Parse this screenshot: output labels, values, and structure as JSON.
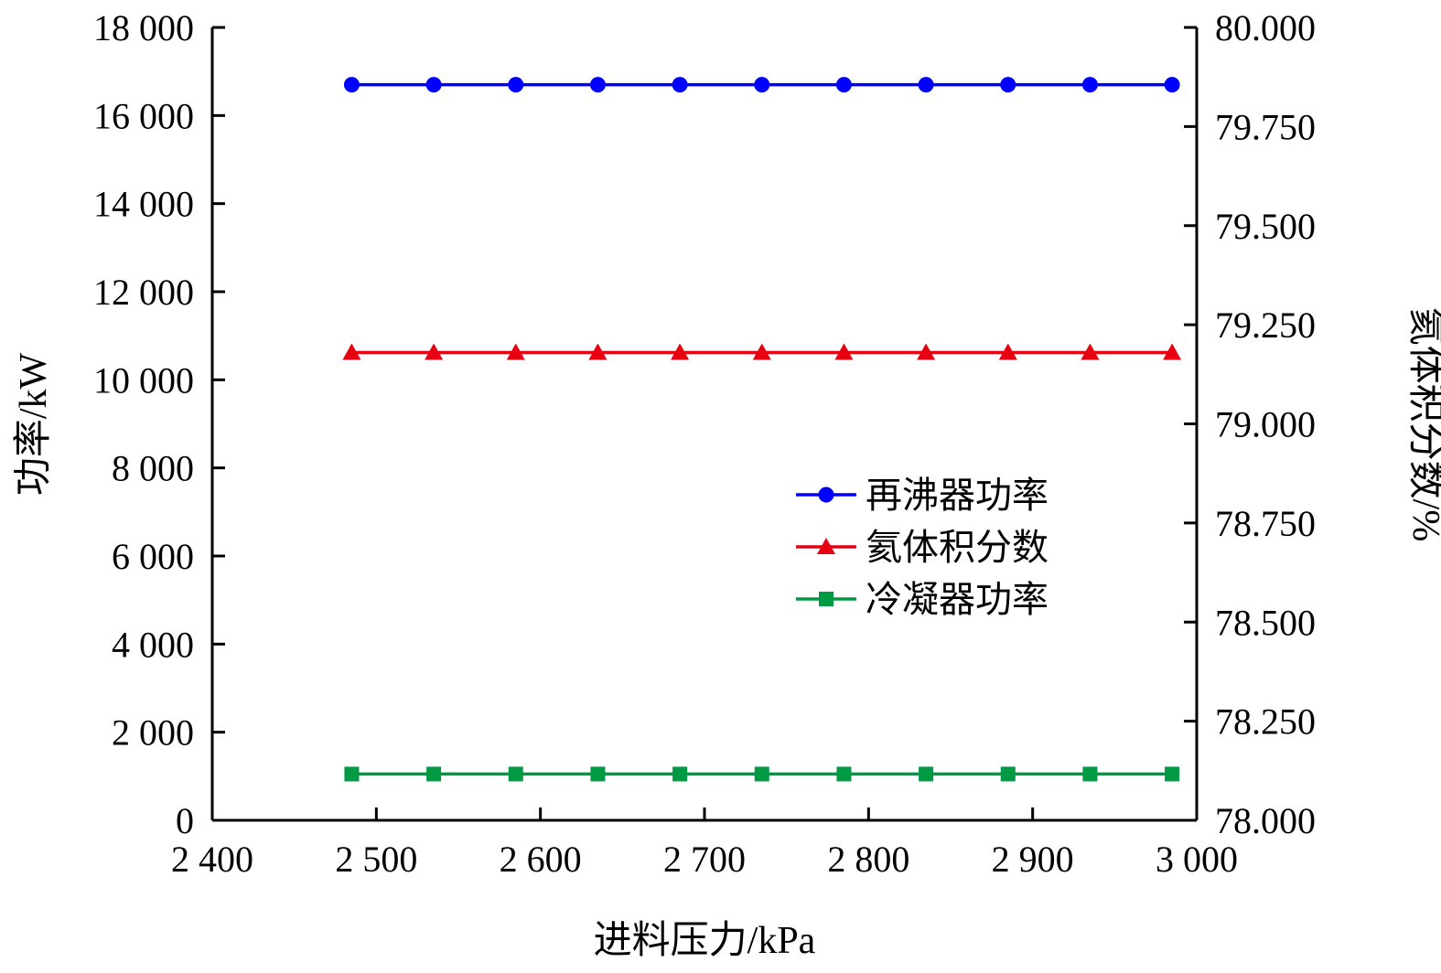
{
  "chart_data": {
    "type": "line",
    "xlabel": "进料压力/kPa",
    "ylabel_left": "功率/kW",
    "ylabel_right": "氦体积分数/%",
    "xlim": [
      2400,
      3000
    ],
    "ylim_left": [
      0,
      18000
    ],
    "ylim_right": [
      78.0,
      80.0
    ],
    "x_ticks": [
      2400,
      2500,
      2600,
      2700,
      2800,
      2900,
      3000
    ],
    "x_tick_labels": [
      "2 400",
      "2 500",
      "2 600",
      "2 700",
      "2 800",
      "2 900",
      "3 000"
    ],
    "y_left_ticks": [
      0,
      2000,
      4000,
      6000,
      8000,
      10000,
      12000,
      14000,
      16000,
      18000
    ],
    "y_left_tick_labels": [
      "0",
      "2 000",
      "4 000",
      "6 000",
      "8 000",
      "10 000",
      "12 000",
      "14 000",
      "16 000",
      "18 000"
    ],
    "y_right_ticks": [
      78.0,
      78.25,
      78.5,
      78.75,
      79.0,
      79.25,
      79.5,
      79.75,
      80.0
    ],
    "y_right_tick_labels": [
      "78.000",
      "78.250",
      "78.500",
      "78.750",
      "79.000",
      "79.250",
      "79.500",
      "79.750",
      "80.000"
    ],
    "x": [
      2485,
      2535,
      2585,
      2635,
      2685,
      2735,
      2785,
      2835,
      2885,
      2935,
      2985
    ],
    "series": [
      {
        "name": "再沸器功率",
        "axis": "left",
        "color": "#0000ff",
        "marker": "circle",
        "values": [
          16700,
          16700,
          16700,
          16700,
          16700,
          16700,
          16700,
          16700,
          16700,
          16700,
          16700
        ]
      },
      {
        "name": "氦体积分数",
        "axis": "right",
        "color": "#e60012",
        "marker": "triangle",
        "values": [
          79.18,
          79.18,
          79.18,
          79.18,
          79.18,
          79.18,
          79.18,
          79.18,
          79.18,
          79.18,
          79.18
        ]
      },
      {
        "name": "冷凝器功率",
        "axis": "left",
        "color": "#009944",
        "marker": "square",
        "values": [
          1050,
          1050,
          1050,
          1050,
          1050,
          1050,
          1050,
          1050,
          1050,
          1050,
          1050
        ]
      }
    ],
    "legend_position": "center-right",
    "grid": false
  }
}
